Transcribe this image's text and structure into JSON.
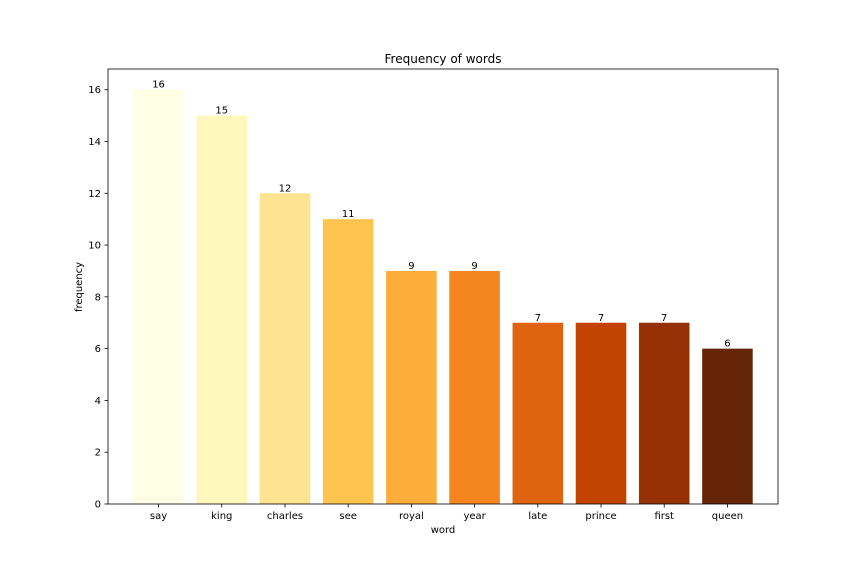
{
  "chart_data": {
    "type": "bar",
    "title": "Frequency of words",
    "xlabel": "word",
    "ylabel": "frequency",
    "categories": [
      "say",
      "king",
      "charles",
      "see",
      "royal",
      "year",
      "late",
      "prince",
      "first",
      "queen"
    ],
    "values": [
      16,
      15,
      12,
      11,
      9,
      9,
      7,
      7,
      7,
      6
    ],
    "ylim": [
      0,
      16.8
    ],
    "yticks": [
      0,
      2,
      4,
      6,
      8,
      10,
      12,
      14,
      16
    ],
    "colors": [
      "#ffffe5",
      "#fff7bc",
      "#fee391",
      "#fec44f",
      "#fdae3a",
      "#f5861f",
      "#e0640f",
      "#c24302",
      "#963105",
      "#662506"
    ],
    "grid": false,
    "data_labels": true
  }
}
